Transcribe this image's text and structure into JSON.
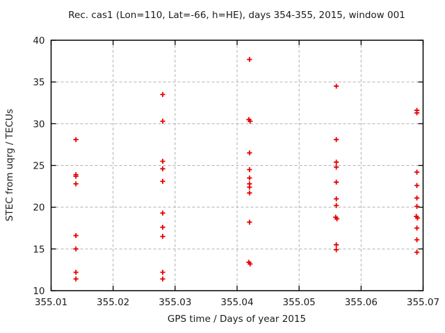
{
  "chart_data": {
    "type": "scatter",
    "title": "Rec. cas1 (Lon=110, Lat=-66, h=HE), days 354-355, 2015, window 001",
    "xlabel": "GPS time / Days of year 2015",
    "ylabel": "STEC from uqrg / TECUs",
    "xlim": [
      355.01,
      355.07
    ],
    "ylim": [
      10,
      40
    ],
    "xticks": [
      355.01,
      355.02,
      355.03,
      355.04,
      355.05,
      355.06,
      355.07
    ],
    "xtick_labels": [
      "355.01",
      "355.02",
      "355.03",
      "355.04",
      "355.05",
      "355.06",
      "355.07"
    ],
    "yticks": [
      10,
      15,
      20,
      25,
      30,
      35,
      40
    ],
    "ytick_labels": [
      "10",
      "15",
      "20",
      "25",
      "30",
      "35",
      "40"
    ],
    "grid": true,
    "legend": "none",
    "marker": "plus",
    "marker_color": "#e60000",
    "grid_color": "#b0b0b0",
    "border_color": "#000000",
    "points": [
      [
        355.014,
        28.1
      ],
      [
        355.014,
        23.9
      ],
      [
        355.014,
        23.7
      ],
      [
        355.014,
        22.8
      ],
      [
        355.014,
        16.6
      ],
      [
        355.014,
        15.0
      ],
      [
        355.014,
        12.2
      ],
      [
        355.014,
        11.4
      ],
      [
        355.028,
        33.5
      ],
      [
        355.028,
        30.3
      ],
      [
        355.028,
        25.5
      ],
      [
        355.028,
        24.6
      ],
      [
        355.028,
        23.1
      ],
      [
        355.028,
        19.3
      ],
      [
        355.028,
        17.6
      ],
      [
        355.028,
        16.5
      ],
      [
        355.028,
        12.2
      ],
      [
        355.028,
        11.4
      ],
      [
        355.042,
        37.7
      ],
      [
        355.0419,
        30.5
      ],
      [
        355.0421,
        30.3
      ],
      [
        355.042,
        26.5
      ],
      [
        355.042,
        24.5
      ],
      [
        355.042,
        23.5
      ],
      [
        355.042,
        22.8
      ],
      [
        355.042,
        22.4
      ],
      [
        355.042,
        21.7
      ],
      [
        355.042,
        18.2
      ],
      [
        355.0419,
        13.4
      ],
      [
        355.0421,
        13.2
      ],
      [
        355.056,
        34.5
      ],
      [
        355.056,
        28.1
      ],
      [
        355.056,
        25.4
      ],
      [
        355.056,
        24.8
      ],
      [
        355.056,
        23.0
      ],
      [
        355.056,
        21.0
      ],
      [
        355.056,
        20.2
      ],
      [
        355.0559,
        18.8
      ],
      [
        355.0561,
        18.6
      ],
      [
        355.056,
        15.5
      ],
      [
        355.056,
        14.9
      ],
      [
        355.069,
        31.6
      ],
      [
        355.069,
        31.3
      ],
      [
        355.069,
        24.2
      ],
      [
        355.069,
        22.6
      ],
      [
        355.069,
        21.1
      ],
      [
        355.069,
        20.1
      ],
      [
        355.0689,
        18.9
      ],
      [
        355.0691,
        18.7
      ],
      [
        355.069,
        17.5
      ],
      [
        355.069,
        16.1
      ],
      [
        355.069,
        14.6
      ]
    ]
  }
}
